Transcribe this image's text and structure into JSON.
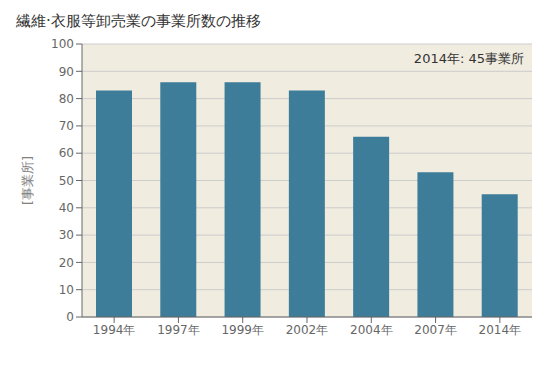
{
  "chart_data": {
    "type": "bar",
    "title": "繊維·衣服等卸売業の事業所数の推移",
    "ylabel": "[事業所]",
    "annotation": "2014年: 45事業所",
    "categories": [
      "1994年",
      "1997年",
      "1999年",
      "2002年",
      "2004年",
      "2007年",
      "2014年"
    ],
    "values": [
      83,
      86,
      86,
      83,
      66,
      53,
      45
    ],
    "color": "#3d7d9a",
    "ylim": [
      0,
      100
    ],
    "yticks": [
      0,
      10,
      20,
      30,
      40,
      50,
      60,
      70,
      80,
      90,
      100
    ],
    "grid": true
  }
}
